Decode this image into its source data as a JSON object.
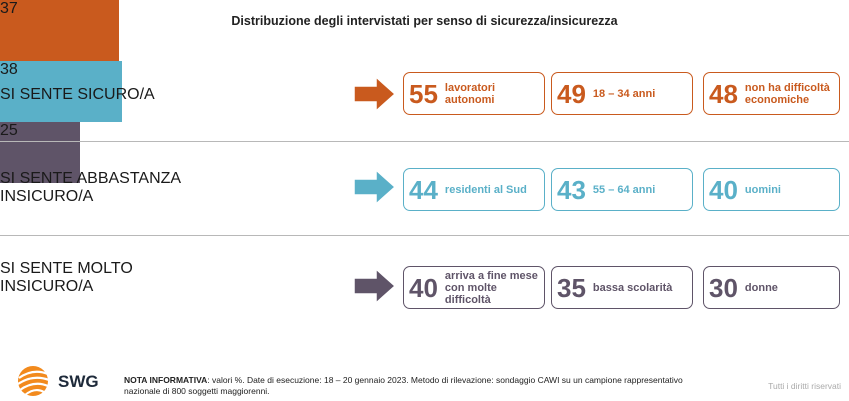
{
  "chart_data": {
    "type": "bar",
    "title": "Distribuzione degli intervistati per senso di sicurezza/insicurezza",
    "categories": [
      "SI SENTE SICURO/A",
      "SI SENTE ABBASTANZA INSICURO/A",
      "SI SENTE MOLTO INSICURO/A"
    ],
    "values": [
      37,
      38,
      25
    ],
    "rows": [
      {
        "label_lines": [
          "SI SENTE SICURO/A"
        ],
        "value": 37,
        "color": "#c95a1e",
        "details": [
          {
            "value": 55,
            "lines": [
              "lavoratori",
              "autonomi"
            ]
          },
          {
            "value": 49,
            "lines": [
              "18 – 34 anni"
            ]
          },
          {
            "value": 48,
            "lines": [
              "non ha difficoltà",
              "economiche"
            ]
          }
        ]
      },
      {
        "label_lines": [
          "SI SENTE ABBASTANZA",
          "INSICURO/A"
        ],
        "value": 38,
        "color": "#5ab0c8",
        "details": [
          {
            "value": 44,
            "lines": [
              "residenti al Sud"
            ]
          },
          {
            "value": 43,
            "lines": [
              "55 – 64 anni"
            ]
          },
          {
            "value": 40,
            "lines": [
              "uomini"
            ]
          }
        ]
      },
      {
        "label_lines": [
          "SI SENTE MOLTO",
          "INSICURO/A"
        ],
        "value": 25,
        "color": "#5f5468",
        "details": [
          {
            "value": 40,
            "lines": [
              "arriva a fine mese",
              "con molte difficoltà"
            ]
          },
          {
            "value": 35,
            "lines": [
              "bassa scolarità"
            ]
          },
          {
            "value": 30,
            "lines": [
              "donne"
            ]
          }
        ]
      }
    ]
  },
  "footer": {
    "brand": "SWG",
    "note_label": "NOTA INFORMATIVA",
    "note_line1": ": valori %. Date di esecuzione: 18 – 20 gennaio 2023. Metodo di rilevazione: sondaggio CAWI su un campione rappresentativo",
    "note_line2": "nazionale di 800 soggetti maggiorenni.",
    "rights": "Tutti i diritti riservati"
  }
}
